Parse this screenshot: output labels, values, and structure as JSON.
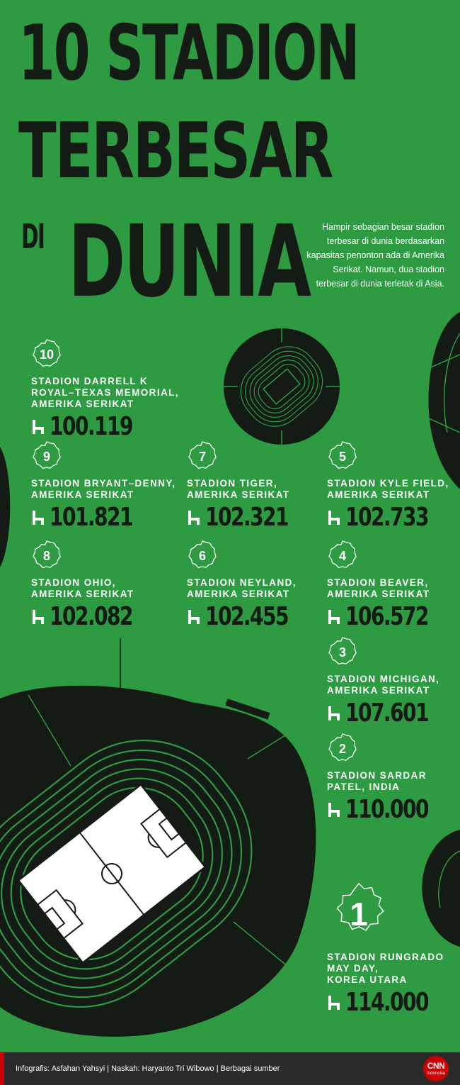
{
  "title": {
    "line1": "10 STADION",
    "line2": "TERBESAR",
    "di": "DI",
    "dunia": "DUNIA"
  },
  "intro": "Hampir sebagian besar stadion terbesar di dunia berdasarkan kapasitas penonton ada di Amerika Serikat. Namun, dua stadion terbesar di dunia terletak di Asia.",
  "stadiums": [
    {
      "rank": "10",
      "name": "STADION DARRELL K\nROYAL–TEXAS MEMORIAL,\nAMERIKA SERIKAT",
      "capacity": "100.119"
    },
    {
      "rank": "9",
      "name": "STADION BRYANT–DENNY,\nAMERIKA SERIKAT",
      "capacity": "101.821"
    },
    {
      "rank": "8",
      "name": "STADION OHIO,\nAMERIKA SERIKAT",
      "capacity": "102.082"
    },
    {
      "rank": "7",
      "name": "STADION TIGER,\nAMERIKA SERIKAT",
      "capacity": "102.321"
    },
    {
      "rank": "6",
      "name": "STADION NEYLAND,\nAMERIKA SERIKAT",
      "capacity": "102.455"
    },
    {
      "rank": "5",
      "name": "STADION KYLE FIELD,\nAMERIKA SERIKAT",
      "capacity": "102.733"
    },
    {
      "rank": "4",
      "name": "STADION BEAVER,\nAMERIKA SERIKAT",
      "capacity": "106.572"
    },
    {
      "rank": "3",
      "name": "STADION MICHIGAN,\nAMERIKA SERIKAT",
      "capacity": "107.601"
    },
    {
      "rank": "2",
      "name": "STADION SARDAR\nPATEL, INDIA",
      "capacity": "110.000"
    },
    {
      "rank": "1",
      "name": "STADION RUNGRADO\nMAY DAY,\nKOREA UTARA",
      "capacity": "114.000"
    }
  ],
  "footer": {
    "credits": "Infografis: Asfahan Yahsyi | Naskah: Haryanto Tri Wibowo | Berbagai sumber",
    "logo": "CNN",
    "logo_sub": "Indonesia"
  },
  "colors": {
    "background": "#2e9b43",
    "dark": "#141a14",
    "text_light": "#ffffff",
    "footer": "#2a2a2a",
    "logo": "#cc0000"
  },
  "icons": {
    "rank": "star-badge-icon",
    "capacity": "seat-icon"
  }
}
